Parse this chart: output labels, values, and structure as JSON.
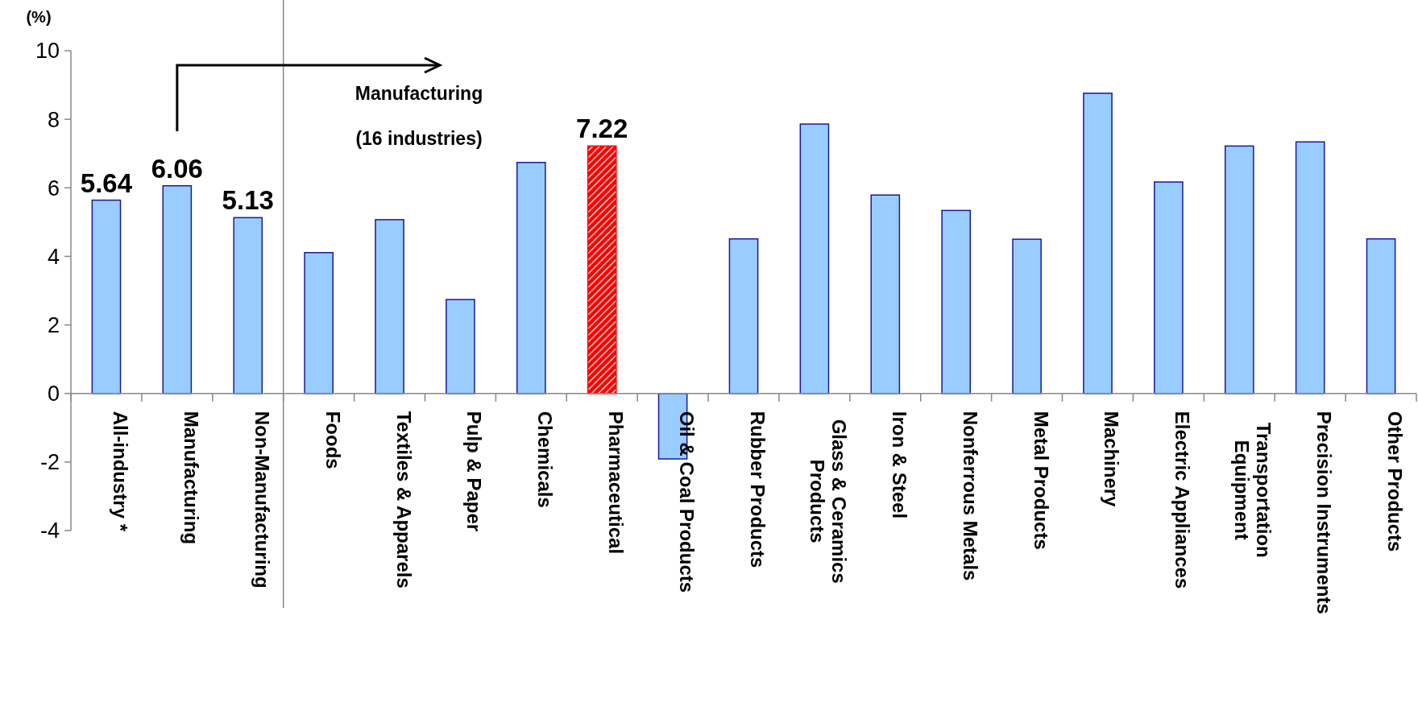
{
  "chart_data": {
    "type": "bar",
    "ylabel": "(%)",
    "categories": [
      "All-industry *",
      "Manufacturing",
      "Non-Manufacturing",
      "Foods",
      "Textiles & Apparels",
      "Pulp & Paper",
      "Chemicals",
      "Pharmaceutical",
      "Oil & Coal Products",
      "Rubber Products",
      "Glass & Ceramics Products",
      "Iron & Steel",
      "Nonferrous Metals",
      "Metal Products",
      "Machinery",
      "Electric Appliances",
      "Transportation Equipment",
      "Precision Instruments",
      "Other Products"
    ],
    "values": [
      5.64,
      6.06,
      5.13,
      4.11,
      5.07,
      2.74,
      6.74,
      7.22,
      -1.91,
      4.51,
      7.86,
      5.79,
      5.34,
      4.5,
      8.76,
      6.17,
      7.22,
      7.34,
      4.51
    ],
    "colors": [
      "#99ccff",
      "#99ccff",
      "#99ccff",
      "#99ccff",
      "#99ccff",
      "#99ccff",
      "#99ccff",
      "#ff0000",
      "#99ccff",
      "#99ccff",
      "#99ccff",
      "#99ccff",
      "#99ccff",
      "#99ccff",
      "#99ccff",
      "#99ccff",
      "#99ccff",
      "#99ccff",
      "#99ccff"
    ],
    "value_labels": [
      "5.64",
      "6.06",
      "5.13",
      null,
      null,
      null,
      null,
      "7.22",
      null,
      null,
      null,
      null,
      null,
      null,
      null,
      null,
      null,
      null,
      null
    ],
    "ylim": [
      -4,
      10
    ],
    "yticks": [
      -4,
      -2,
      0,
      2,
      4,
      6,
      8,
      10
    ],
    "grid": false,
    "ref_lines": [
      {
        "axis": "x",
        "value": "Non-Manufacturing",
        "color": "#888888"
      }
    ],
    "annotations": [
      "Manufacturing",
      "(16 industries)"
    ]
  }
}
